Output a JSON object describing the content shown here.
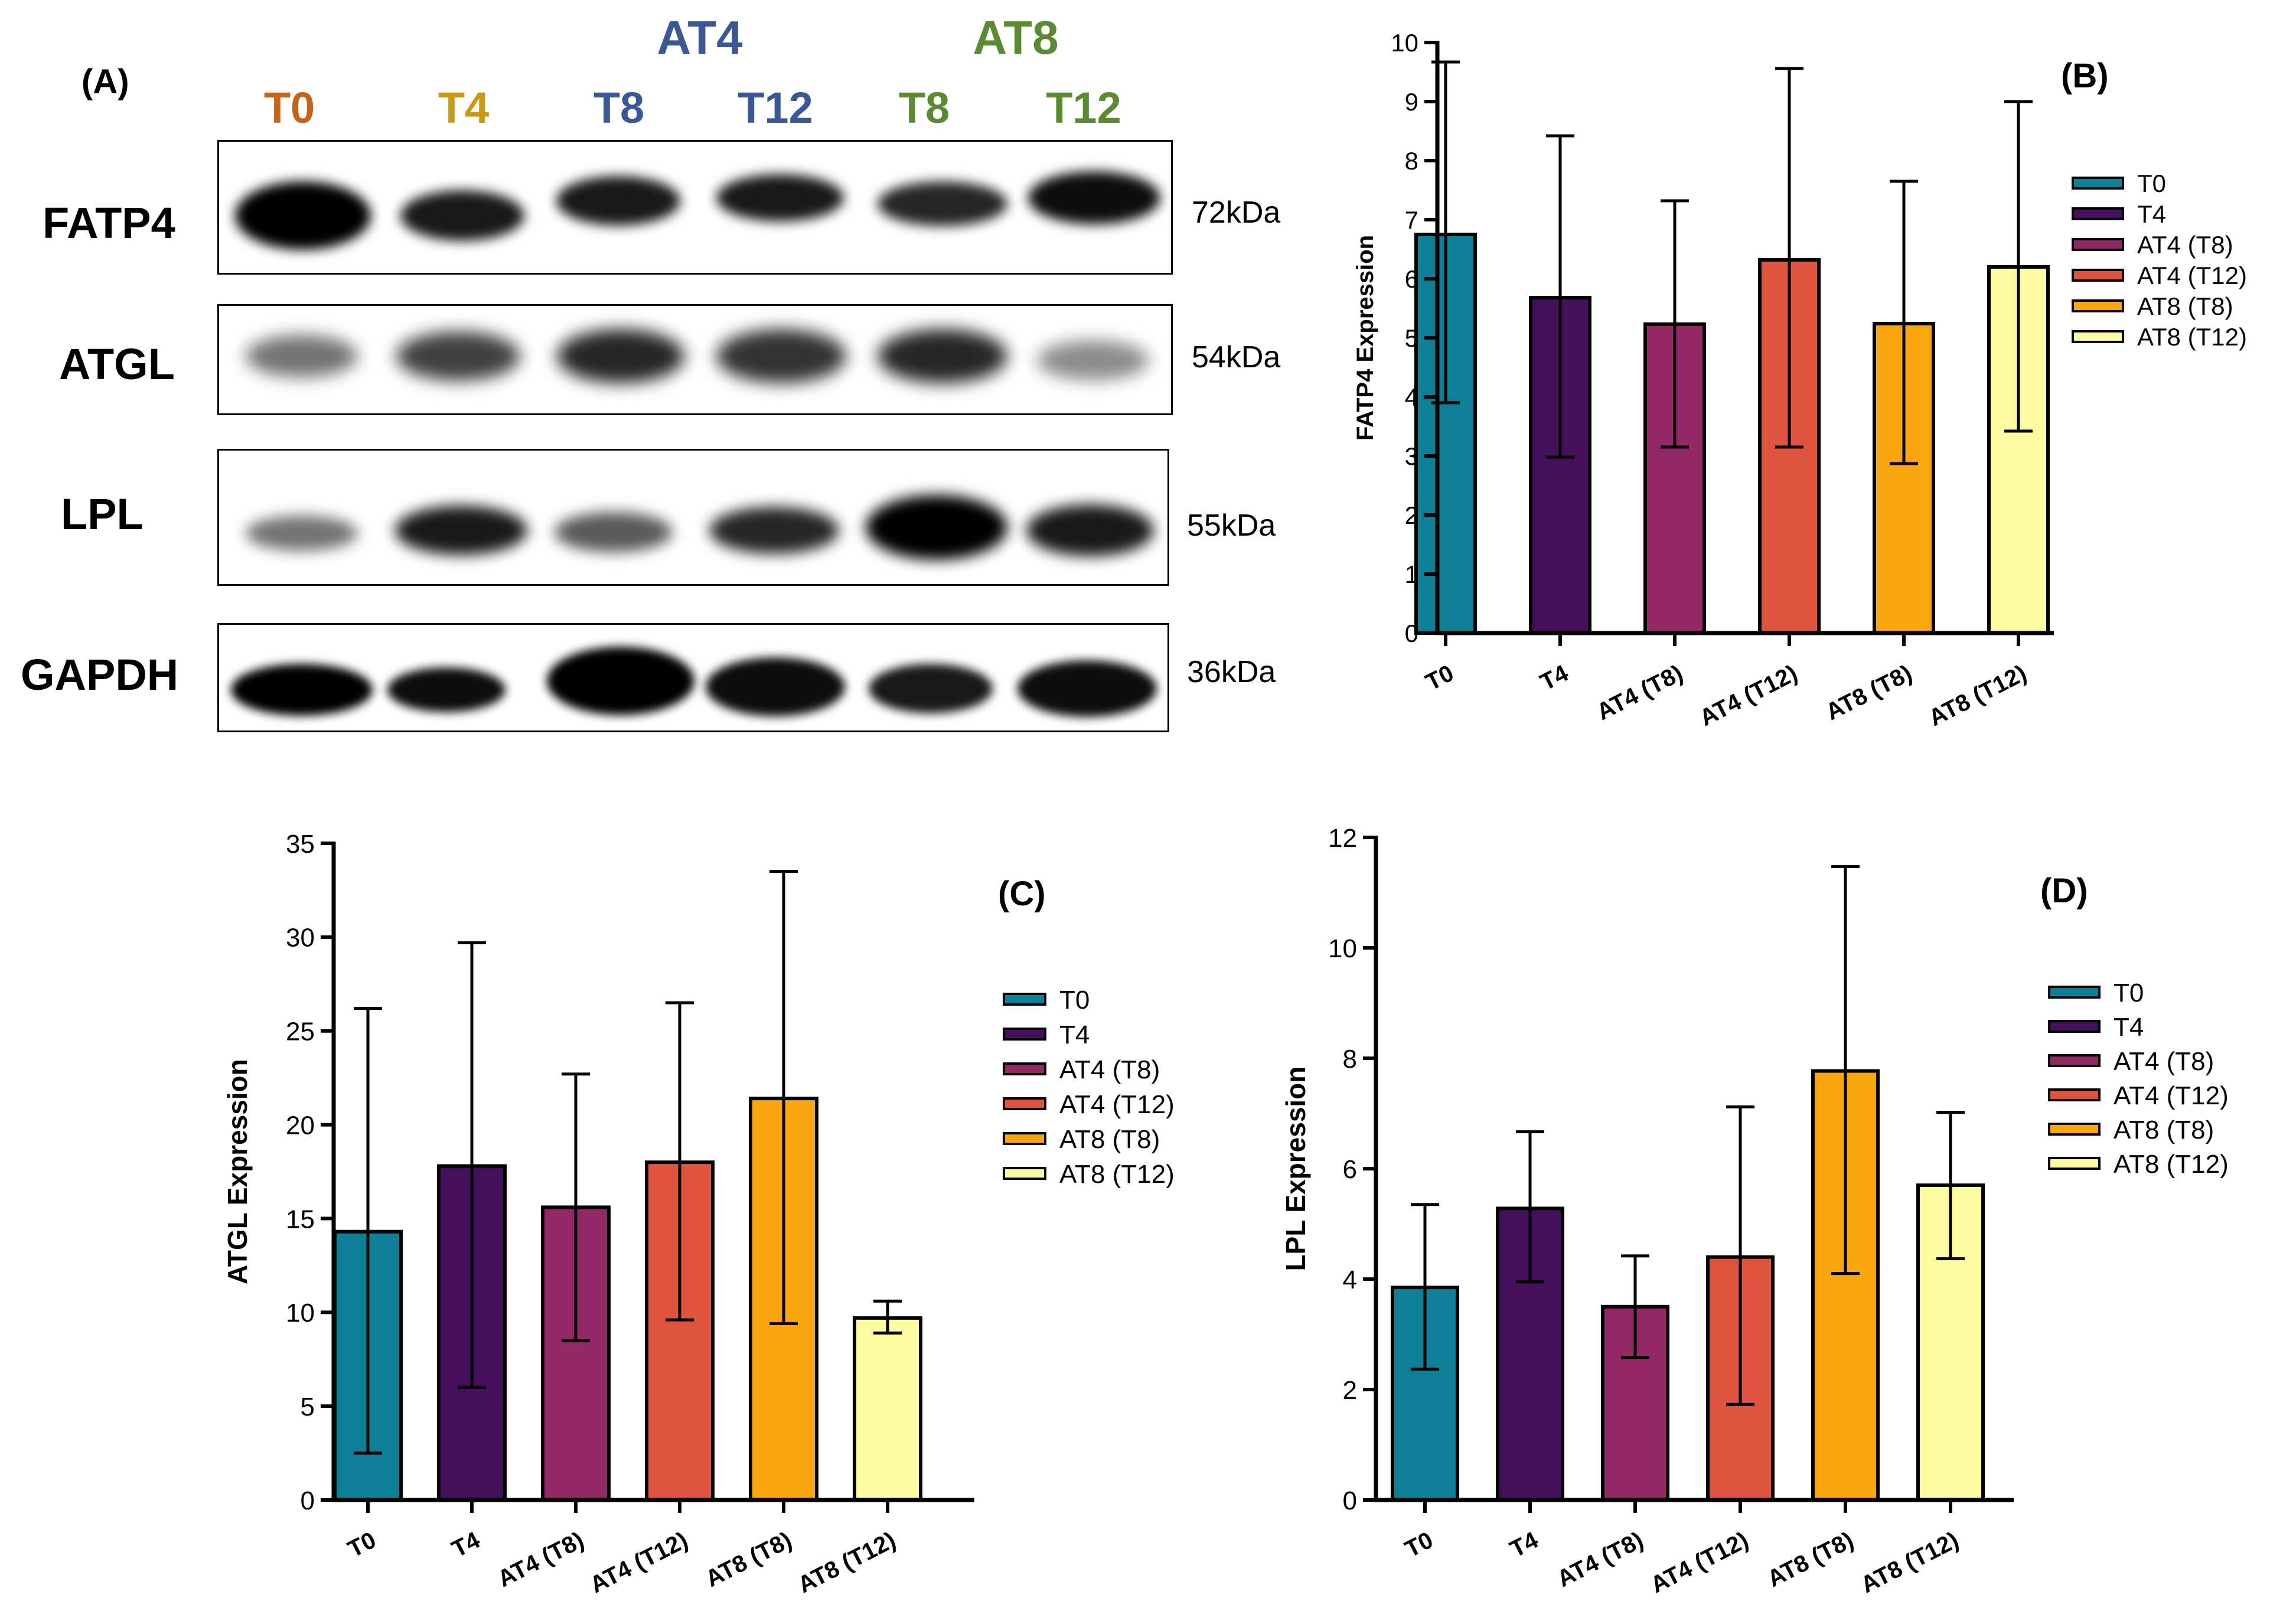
{
  "panel_a": {
    "label": "(A)",
    "groups": [
      {
        "label": "AT4",
        "color": "#3a5894"
      },
      {
        "label": "AT8",
        "color": "#5c8a33"
      }
    ],
    "lanes": [
      {
        "label": "T0",
        "color": "#c5651c"
      },
      {
        "label": "T4",
        "color": "#c79a12"
      },
      {
        "label": "T8",
        "color": "#3a5894"
      },
      {
        "label": "T12",
        "color": "#3a5894"
      },
      {
        "label": "T8",
        "color": "#5c8a33"
      },
      {
        "label": "T12",
        "color": "#5c8a33"
      }
    ],
    "blots": [
      {
        "protein": "FATP4",
        "kda": "72kDa",
        "intensity": [
          1.0,
          0.85,
          0.8,
          0.8,
          0.75,
          0.85
        ]
      },
      {
        "protein": "ATGL",
        "kda": "54kDa",
        "intensity": [
          0.5,
          0.75,
          0.85,
          0.8,
          0.85,
          0.45
        ]
      },
      {
        "protein": "LPL",
        "kda": "55kDa",
        "intensity": [
          0.55,
          0.9,
          0.65,
          0.85,
          1.0,
          0.9
        ]
      },
      {
        "protein": "GAPDH",
        "kda": "36kDa",
        "intensity": [
          1.0,
          0.9,
          1.0,
          0.95,
          0.9,
          0.95
        ]
      }
    ]
  },
  "chart_data": [
    {
      "panel": "(B)",
      "type": "bar",
      "title": "",
      "xlabel": "",
      "ylabel": "FATP4 Expression",
      "ylim": [
        0,
        10
      ],
      "yticks": [
        0,
        1,
        2,
        3,
        4,
        5,
        6,
        7,
        8,
        9,
        10
      ],
      "categories": [
        "T0",
        "T4",
        "AT4 (T8)",
        "AT4 (T12)",
        "AT8 (T8)",
        "AT8 (T12)"
      ],
      "values": [
        6.75,
        5.68,
        5.23,
        6.32,
        5.24,
        6.2
      ],
      "error_low": [
        3.9,
        2.98,
        3.15,
        3.15,
        2.87,
        3.42
      ],
      "error_high": [
        9.67,
        8.42,
        7.32,
        9.56,
        7.65,
        9.0
      ],
      "legend": [
        "T0",
        "T4",
        "AT4 (T8)",
        "AT4 (T12)",
        "AT8 (T8)",
        "AT8 (T12)"
      ],
      "legend_position": "right",
      "colors": [
        "#0d7f96",
        "#44105c",
        "#922865",
        "#e0533e",
        "#fba50f",
        "#fbfca1"
      ]
    },
    {
      "panel": "(C)",
      "type": "bar",
      "title": "",
      "xlabel": "",
      "ylabel": "ATGL Expression",
      "ylim": [
        0,
        35
      ],
      "yticks": [
        0,
        5,
        10,
        15,
        20,
        25,
        30,
        35
      ],
      "categories": [
        "T0",
        "T4",
        "AT4 (T8)",
        "AT4 (T12)",
        "AT8 (T8)",
        "AT8 (T12)"
      ],
      "values": [
        14.3,
        17.8,
        15.6,
        18.0,
        21.4,
        9.7
      ],
      "error_low": [
        2.5,
        6.0,
        8.5,
        9.6,
        9.4,
        8.9
      ],
      "error_high": [
        26.2,
        29.7,
        22.7,
        26.5,
        33.5,
        10.6
      ],
      "legend": [
        "T0",
        "T4",
        "AT4 (T8)",
        "AT4 (T12)",
        "AT8 (T8)",
        "AT8 (T12)"
      ],
      "legend_position": "right",
      "colors": [
        "#0d7f96",
        "#44105c",
        "#922865",
        "#e0533e",
        "#fba50f",
        "#fbfca1"
      ]
    },
    {
      "panel": "(D)",
      "type": "bar",
      "title": "",
      "xlabel": "",
      "ylabel": "LPL Expression",
      "ylim": [
        0,
        12
      ],
      "yticks": [
        0,
        2,
        4,
        6,
        8,
        10,
        12
      ],
      "categories": [
        "T0",
        "T4",
        "AT4 (T8)",
        "AT4 (T12)",
        "AT8 (T8)",
        "AT8 (T12)"
      ],
      "values": [
        3.85,
        5.28,
        3.5,
        4.4,
        7.77,
        5.7
      ],
      "error_low": [
        2.37,
        3.95,
        2.58,
        1.73,
        4.1,
        4.37
      ],
      "error_high": [
        5.35,
        6.67,
        4.42,
        7.12,
        11.47,
        7.02
      ],
      "legend": [
        "T0",
        "T4",
        "AT4 (T8)",
        "AT4 (T12)",
        "AT8 (T8)",
        "AT8 (T12)"
      ],
      "legend_position": "right",
      "colors": [
        "#0d7f96",
        "#44105c",
        "#922865",
        "#e0533e",
        "#fba50f",
        "#fbfca1"
      ]
    }
  ]
}
